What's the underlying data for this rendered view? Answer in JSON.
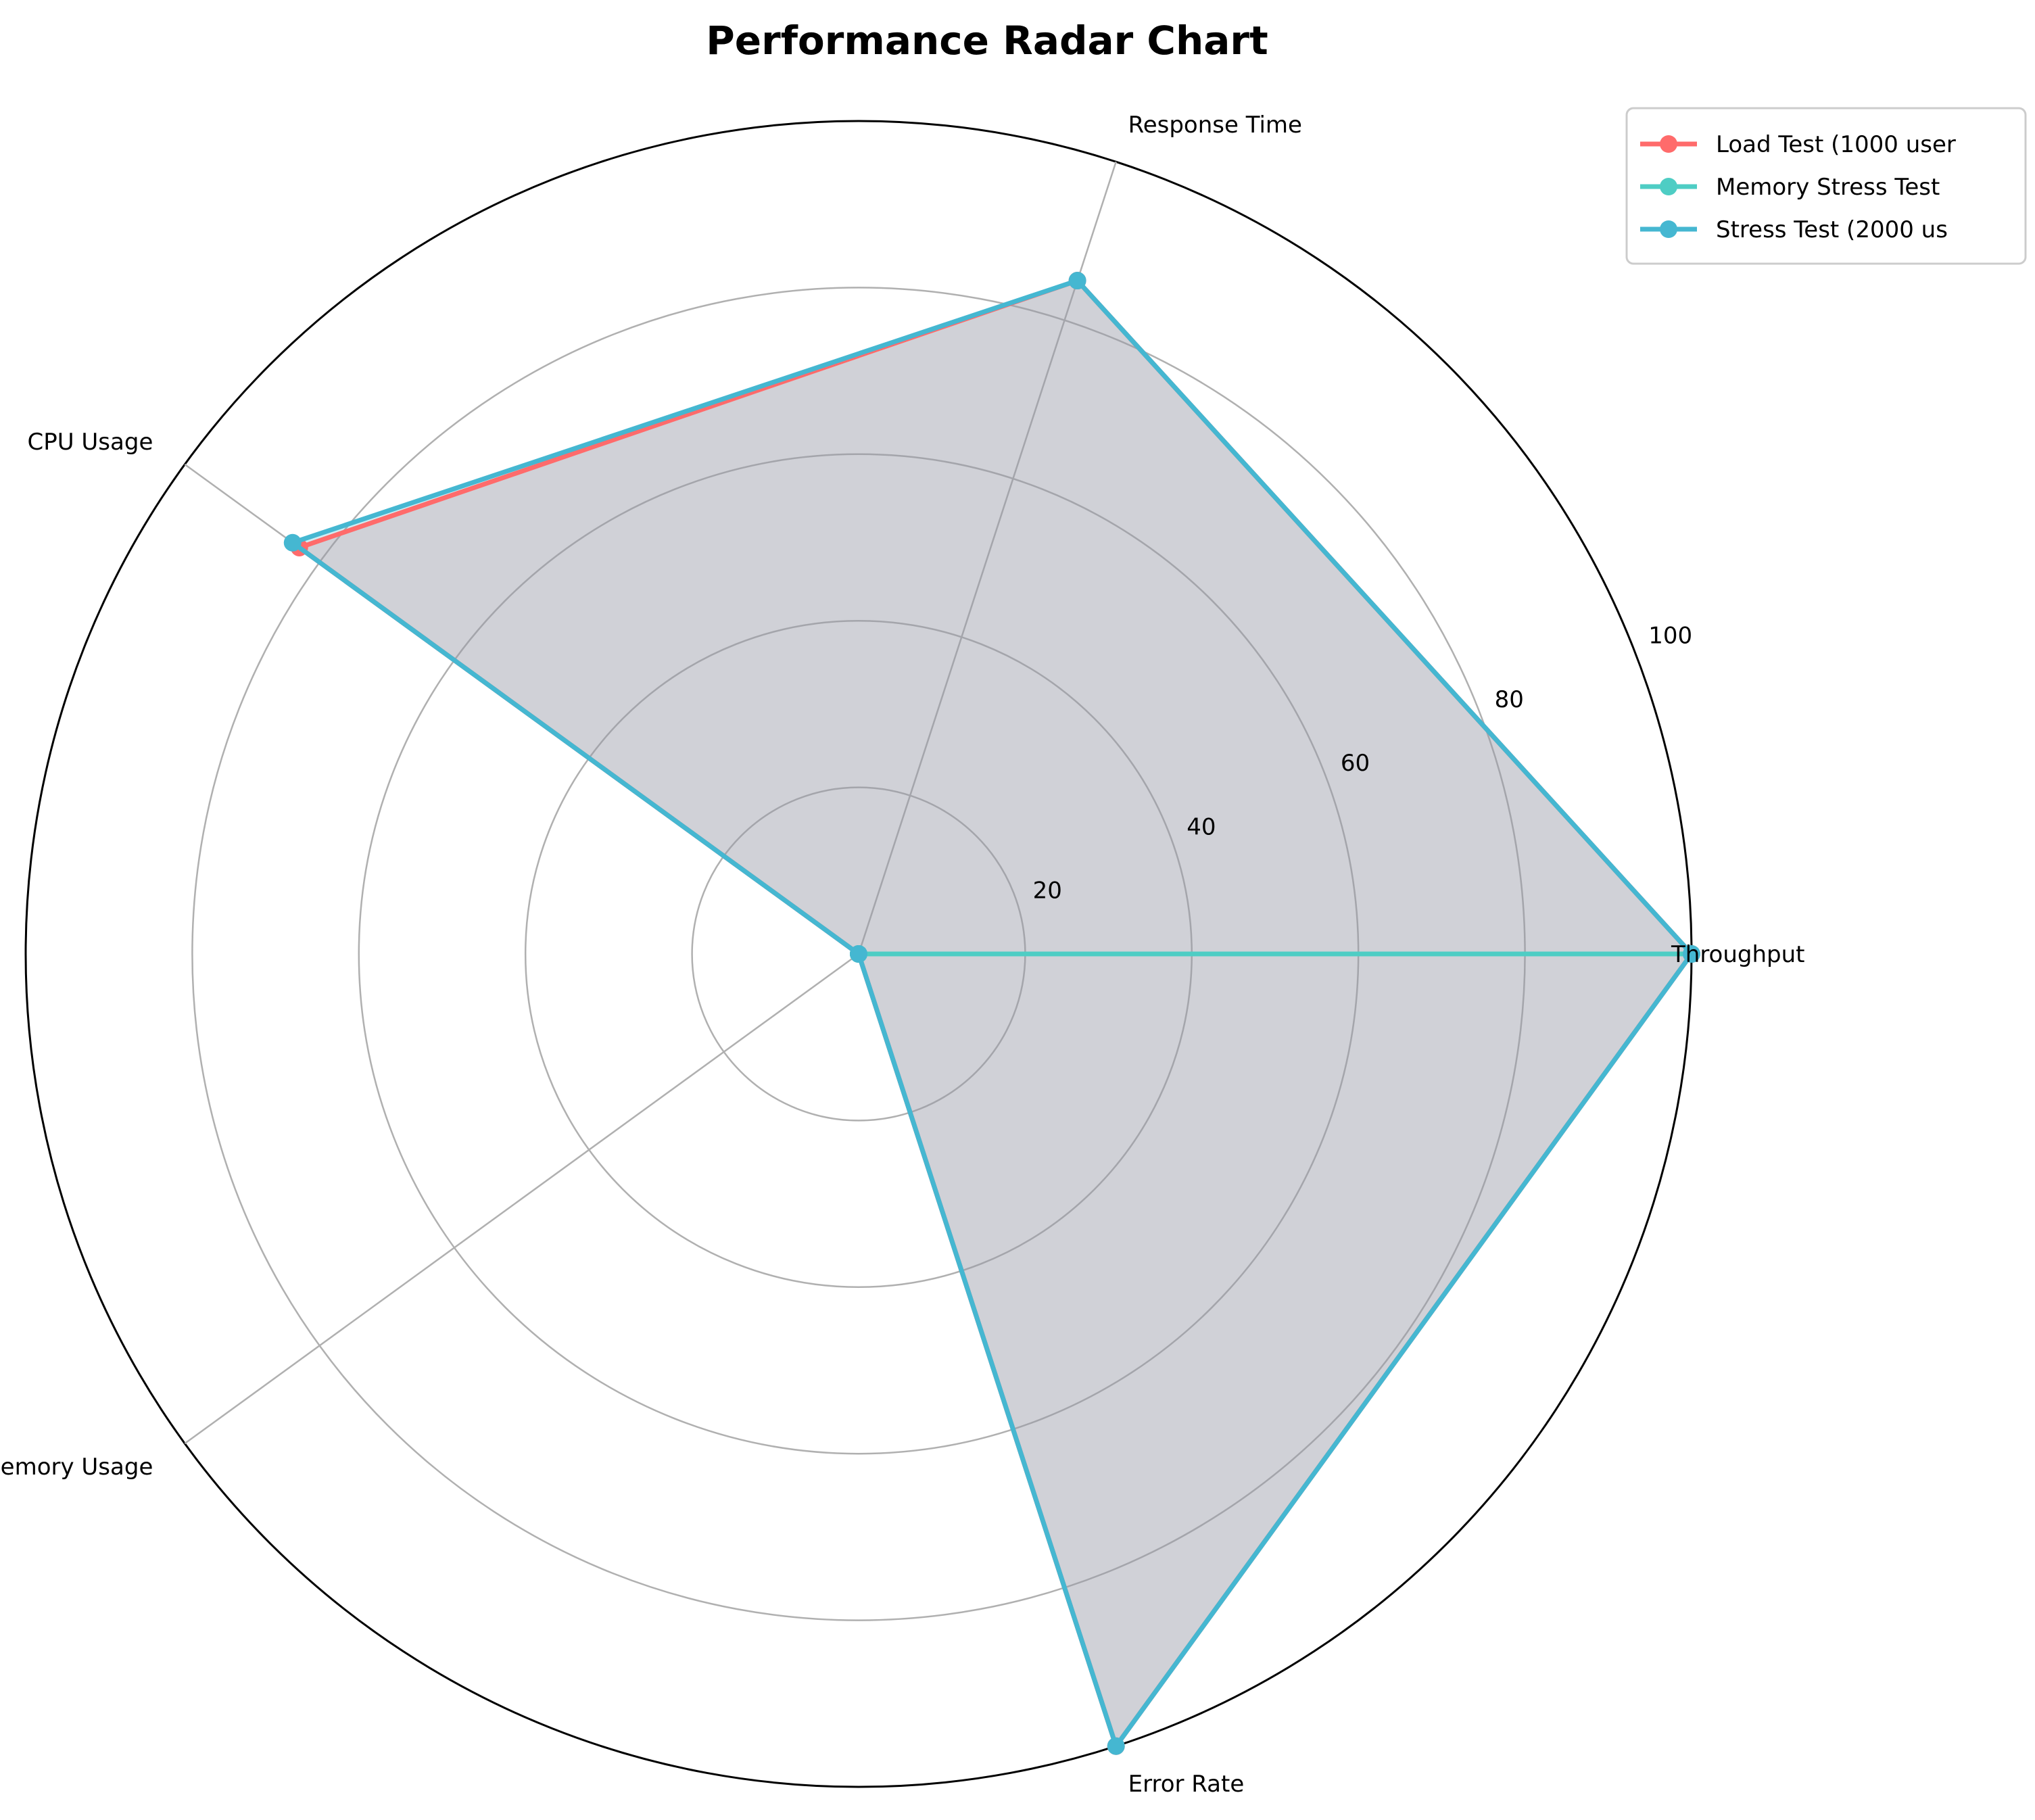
{
  "chart_data": {
    "type": "radar",
    "title": "Performance Radar Chart",
    "axes": [
      "Throughput",
      "Response Time",
      "CPU Usage",
      "Memory Usage",
      "Error Rate"
    ],
    "rlim": [
      0,
      100
    ],
    "rticks": [
      20,
      40,
      60,
      80,
      100
    ],
    "grid": true,
    "legend_position": "top-right",
    "series": [
      {
        "name": "Load Test (1000 user",
        "color": "#FF6B6B",
        "values": [
          100,
          85,
          83,
          0,
          100
        ]
      },
      {
        "name": "Memory Stress Test",
        "color": "#4ECDC4",
        "values": [
          100,
          0,
          0,
          0,
          0
        ]
      },
      {
        "name": "Stress Test (2000 us",
        "color": "#45B7D1",
        "values": [
          100,
          85,
          84,
          0,
          100
        ]
      }
    ]
  }
}
